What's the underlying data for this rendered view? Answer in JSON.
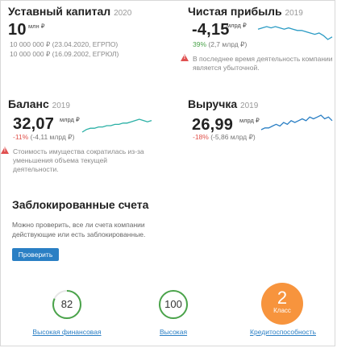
{
  "capital": {
    "title": "Уставный капитал",
    "year": "2020",
    "value": "10",
    "unit": "млн ₽",
    "lines": [
      "10 000 000 ₽ (23.04.2020, ЕГРПО)",
      "10 000 000 ₽ (16.09.2002, ЕГРЮЛ)"
    ]
  },
  "profit": {
    "title": "Чистая прибыль",
    "year": "2019",
    "value": "-4,15",
    "unit": "млрд ₽",
    "change_pct": "39%",
    "change_abs": "(2,7 млрд ₽)",
    "warning": "В последнее время деятельность компании является убыточной.",
    "trend": [
      7,
      6,
      5,
      6,
      5,
      6,
      7,
      6,
      7,
      8,
      8,
      9,
      10,
      11,
      10,
      12,
      15,
      13
    ]
  },
  "balance": {
    "title": "Баланс",
    "year": "2019",
    "value": "32,07",
    "unit": "млрд ₽",
    "change_pct": "-11%",
    "change_abs": "(-4,11 млрд ₽)",
    "warning": "Стоимость имущества сократилась из-за уменьшения объема текущей деятельности.",
    "trend": [
      14,
      12,
      11,
      11,
      10,
      10,
      9,
      9,
      8,
      8,
      7,
      7,
      6,
      5,
      4,
      5,
      6,
      5
    ]
  },
  "revenue": {
    "title": "Выручка",
    "year": "2019",
    "value": "26,99",
    "unit": "млрд ₽",
    "change_pct": "-18%",
    "change_abs": "(-5,86 млрд ₽)",
    "trend": [
      12,
      11,
      11,
      10,
      9,
      10,
      8,
      9,
      7,
      8,
      7,
      6,
      7,
      5,
      6,
      5,
      4,
      6,
      5,
      7
    ]
  },
  "blocked": {
    "title": "Заблокированные счета",
    "description_lines": [
      "Можно проверить, все ли счета компании",
      "действующие или есть заблокированные."
    ],
    "button": "Проверить"
  },
  "ratings": [
    {
      "value": "82",
      "caption": "Высокая финансовая",
      "progress": 0.82
    },
    {
      "value": "100",
      "caption": "Высокая",
      "progress": 1.0
    },
    {
      "value": "2",
      "sublabel": "Класс",
      "caption": "Кредитоспособность"
    }
  ],
  "colors": {
    "accent": "#2a7fc4",
    "good": "#4aa34a",
    "bad": "#e0504a",
    "sparkline": "#2a9bc4",
    "class_badge": "#f7943d"
  }
}
